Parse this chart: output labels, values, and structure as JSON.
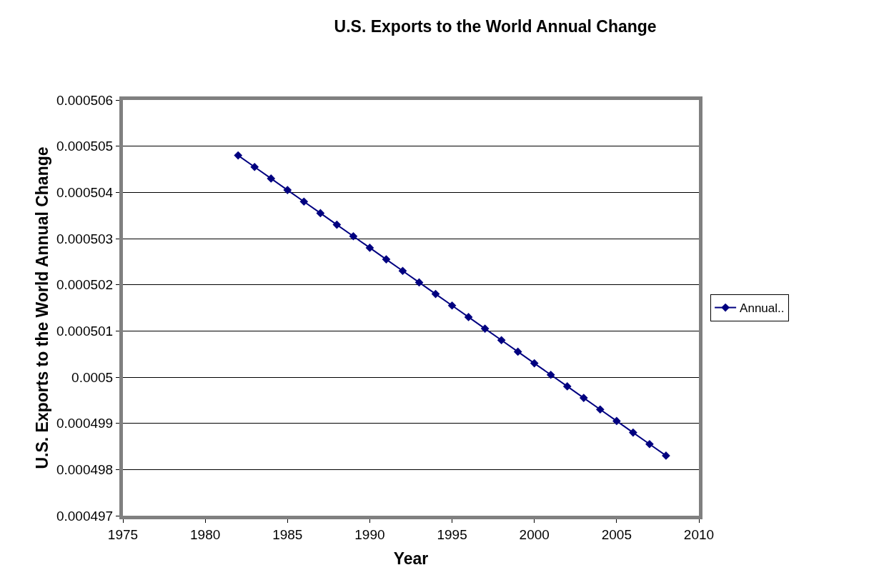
{
  "chart_data": {
    "type": "line",
    "title": "U.S. Exports to the World Annual Change",
    "xlabel": "Year",
    "ylabel": "U.S. Exports to the World Annual Change",
    "x": [
      1982,
      1983,
      1984,
      1985,
      1986,
      1987,
      1988,
      1989,
      1990,
      1991,
      1992,
      1993,
      1994,
      1995,
      1996,
      1997,
      1998,
      1999,
      2000,
      2001,
      2002,
      2003,
      2004,
      2005,
      2006,
      2007,
      2008
    ],
    "series": [
      {
        "name": "Annual..",
        "color": "#000080",
        "values": [
          0.0005048,
          0.00050455,
          0.0005043,
          0.00050405,
          0.0005038,
          0.00050355,
          0.0005033,
          0.00050305,
          0.0005028,
          0.00050255,
          0.0005023,
          0.00050205,
          0.0005018,
          0.00050155,
          0.0005013,
          0.00050105,
          0.0005008,
          0.00050055,
          0.0005003,
          0.00050005,
          0.0004998,
          0.00049955,
          0.0004993,
          0.00049905,
          0.0004988,
          0.00049855,
          0.0004983
        ]
      }
    ],
    "xlim": [
      1975,
      2010
    ],
    "xticks": [
      1975,
      1980,
      1985,
      1990,
      1995,
      2000,
      2005,
      2010
    ],
    "ylim": [
      0.000497,
      0.000506
    ],
    "yticks": [
      0.000497,
      0.000498,
      0.000499,
      0.0005,
      0.000501,
      0.000502,
      0.000503,
      0.000504,
      0.000505,
      0.000506
    ],
    "grid": "y",
    "legend": "right",
    "marker": "diamond",
    "line_style": "solid"
  }
}
